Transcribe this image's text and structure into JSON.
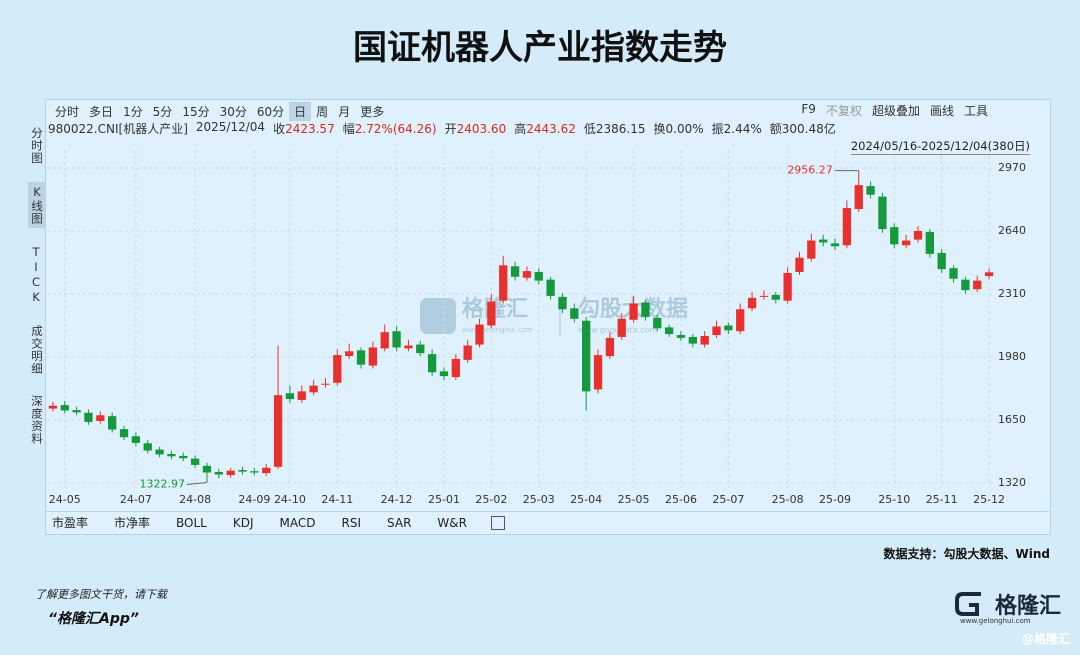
{
  "title": "国证机器人产业指数走势",
  "toolbar": {
    "periods": [
      "分时",
      "多日",
      "1分",
      "5分",
      "15分",
      "30分",
      "60分",
      "日",
      "周",
      "月",
      "更多"
    ],
    "active_period": 7,
    "tools": [
      "F9",
      "不复权",
      "超级叠加",
      "画线",
      "工具"
    ]
  },
  "info": {
    "code": "980022.CNI[机器人产业]",
    "date": "2025/12/04",
    "items": [
      {
        "label": "收",
        "value": "2423.57"
      },
      {
        "label": "幅",
        "value": "2.72%(64.26)"
      },
      {
        "label": "开",
        "value": "2403.60"
      },
      {
        "label": "高",
        "value": "2443.62"
      },
      {
        "label": "低",
        "value": "2386.15"
      },
      {
        "label": "换",
        "value": "0.00%"
      },
      {
        "label": "振",
        "value": "2.44%"
      },
      {
        "label": "额",
        "value": "300.48亿"
      }
    ],
    "range": "2024/05/16-2025/12/04(380日)"
  },
  "sidebar": {
    "items": [
      "分时图",
      "K线图",
      "TICK",
      "成交明细",
      "深度资料"
    ],
    "active": 1
  },
  "watermark": {
    "left": "格隆汇",
    "left_url": "www.gelonghui.com",
    "right": "勾股大数据",
    "right_url": "www.gogudata.com"
  },
  "chart_data": {
    "type": "candlestick",
    "categories": [
      null,
      "24-05",
      null,
      null,
      null,
      null,
      null,
      "24-07",
      null,
      null,
      null,
      null,
      "24-08",
      null,
      null,
      null,
      null,
      "24-09",
      null,
      null,
      "24-10",
      null,
      null,
      null,
      "24-11",
      null,
      null,
      null,
      null,
      "24-12",
      null,
      null,
      null,
      "25-01",
      null,
      null,
      null,
      "25-02",
      null,
      null,
      null,
      "25-03",
      null,
      null,
      null,
      "25-04",
      null,
      null,
      null,
      "25-05",
      null,
      null,
      null,
      "25-06",
      null,
      null,
      null,
      "25-07",
      null,
      null,
      null,
      null,
      "25-08",
      null,
      null,
      null,
      "25-09",
      null,
      null,
      null,
      null,
      "25-10",
      null,
      null,
      null,
      "25-11",
      null,
      null,
      null,
      "25-12"
    ],
    "open": [
      1710,
      1728,
      1702,
      1688,
      1645,
      1670,
      1602,
      1565,
      1528,
      1495,
      1472,
      1462,
      1448,
      1410,
      1378,
      1362,
      1388,
      1382,
      1372,
      1405,
      1790,
      1755,
      1795,
      1835,
      1845,
      1985,
      2015,
      1935,
      2025,
      2115,
      2025,
      2045,
      1995,
      1905,
      1875,
      1965,
      2045,
      2145,
      2275,
      2455,
      2395,
      2425,
      2385,
      2295,
      2235,
      2170,
      1810,
      1985,
      2085,
      2175,
      2265,
      2185,
      2135,
      2095,
      2085,
      2045,
      2095,
      2145,
      2115,
      2235,
      2295,
      2305,
      2275,
      2425,
      2495,
      2595,
      2575,
      2565,
      2755,
      2875,
      2820,
      2660,
      2565,
      2595,
      2635,
      2525,
      2445,
      2385,
      2335,
      2403.6
    ],
    "high": [
      1745,
      1750,
      1720,
      1705,
      1695,
      1690,
      1620,
      1585,
      1545,
      1510,
      1490,
      1480,
      1465,
      1425,
      1395,
      1400,
      1405,
      1400,
      1420,
      2040,
      1830,
      1830,
      1860,
      1870,
      2020,
      2050,
      2030,
      2060,
      2150,
      2140,
      2070,
      2065,
      2020,
      1925,
      1995,
      2070,
      2180,
      2310,
      2510,
      2480,
      2455,
      2445,
      2400,
      2315,
      2260,
      2190,
      2020,
      2110,
      2210,
      2300,
      2280,
      2200,
      2150,
      2115,
      2100,
      2115,
      2170,
      2160,
      2260,
      2320,
      2330,
      2320,
      2450,
      2530,
      2625,
      2620,
      2600,
      2800,
      2956.27,
      2900,
      2840,
      2680,
      2620,
      2665,
      2650,
      2545,
      2460,
      2400,
      2405,
      2443.62
    ],
    "low": [
      1695,
      1685,
      1675,
      1625,
      1630,
      1585,
      1545,
      1515,
      1475,
      1455,
      1445,
      1435,
      1400,
      1322.97,
      1345,
      1348,
      1365,
      1360,
      1358,
      1395,
      1740,
      1740,
      1780,
      1820,
      1830,
      1970,
      1920,
      1920,
      2010,
      2010,
      2010,
      1985,
      1880,
      1860,
      1860,
      1950,
      2030,
      2130,
      2260,
      2380,
      2380,
      2360,
      2280,
      2210,
      2160,
      1700,
      1790,
      1970,
      2070,
      2160,
      2170,
      2115,
      2085,
      2065,
      2030,
      2030,
      2080,
      2100,
      2100,
      2220,
      2280,
      2260,
      2260,
      2410,
      2480,
      2560,
      2540,
      2550,
      2740,
      2810,
      2630,
      2550,
      2550,
      2580,
      2500,
      2420,
      2370,
      2310,
      2320,
      2386.15
    ],
    "close": [
      1725,
      1700,
      1690,
      1640,
      1675,
      1600,
      1560,
      1530,
      1490,
      1470,
      1460,
      1450,
      1415,
      1375,
      1365,
      1385,
      1380,
      1375,
      1400,
      1780,
      1760,
      1800,
      1830,
      1840,
      1990,
      2010,
      1940,
      2030,
      2110,
      2030,
      2040,
      2000,
      1900,
      1880,
      1970,
      2040,
      2150,
      2270,
      2460,
      2400,
      2430,
      2380,
      2300,
      2230,
      2180,
      1800,
      1990,
      2080,
      2180,
      2260,
      2190,
      2130,
      2100,
      2080,
      2050,
      2090,
      2140,
      2120,
      2230,
      2290,
      2300,
      2280,
      2420,
      2500,
      2590,
      2580,
      2560,
      2760,
      2880,
      2830,
      2650,
      2570,
      2590,
      2640,
      2520,
      2440,
      2390,
      2330,
      2380,
      2423.57
    ],
    "up_color": "#e8312f",
    "down_color": "#14993c",
    "ylim": [
      1294,
      3064
    ],
    "yticks": [
      1320,
      1650,
      1980,
      2310,
      2640,
      2970
    ],
    "grid": true,
    "tabs": [
      "市盈率",
      "市净率",
      "BOLL",
      "KDJ",
      "MACD",
      "RSI",
      "SAR",
      "W&R"
    ]
  },
  "source": "数据支持：勾股大数据、Wind",
  "footer": {
    "line1": "了解更多图文干货，请下载",
    "line2": "“格隆汇App”"
  },
  "logo": {
    "name": "格隆汇",
    "url": "www.gelonghui.com",
    "handle": "@格隆汇"
  }
}
